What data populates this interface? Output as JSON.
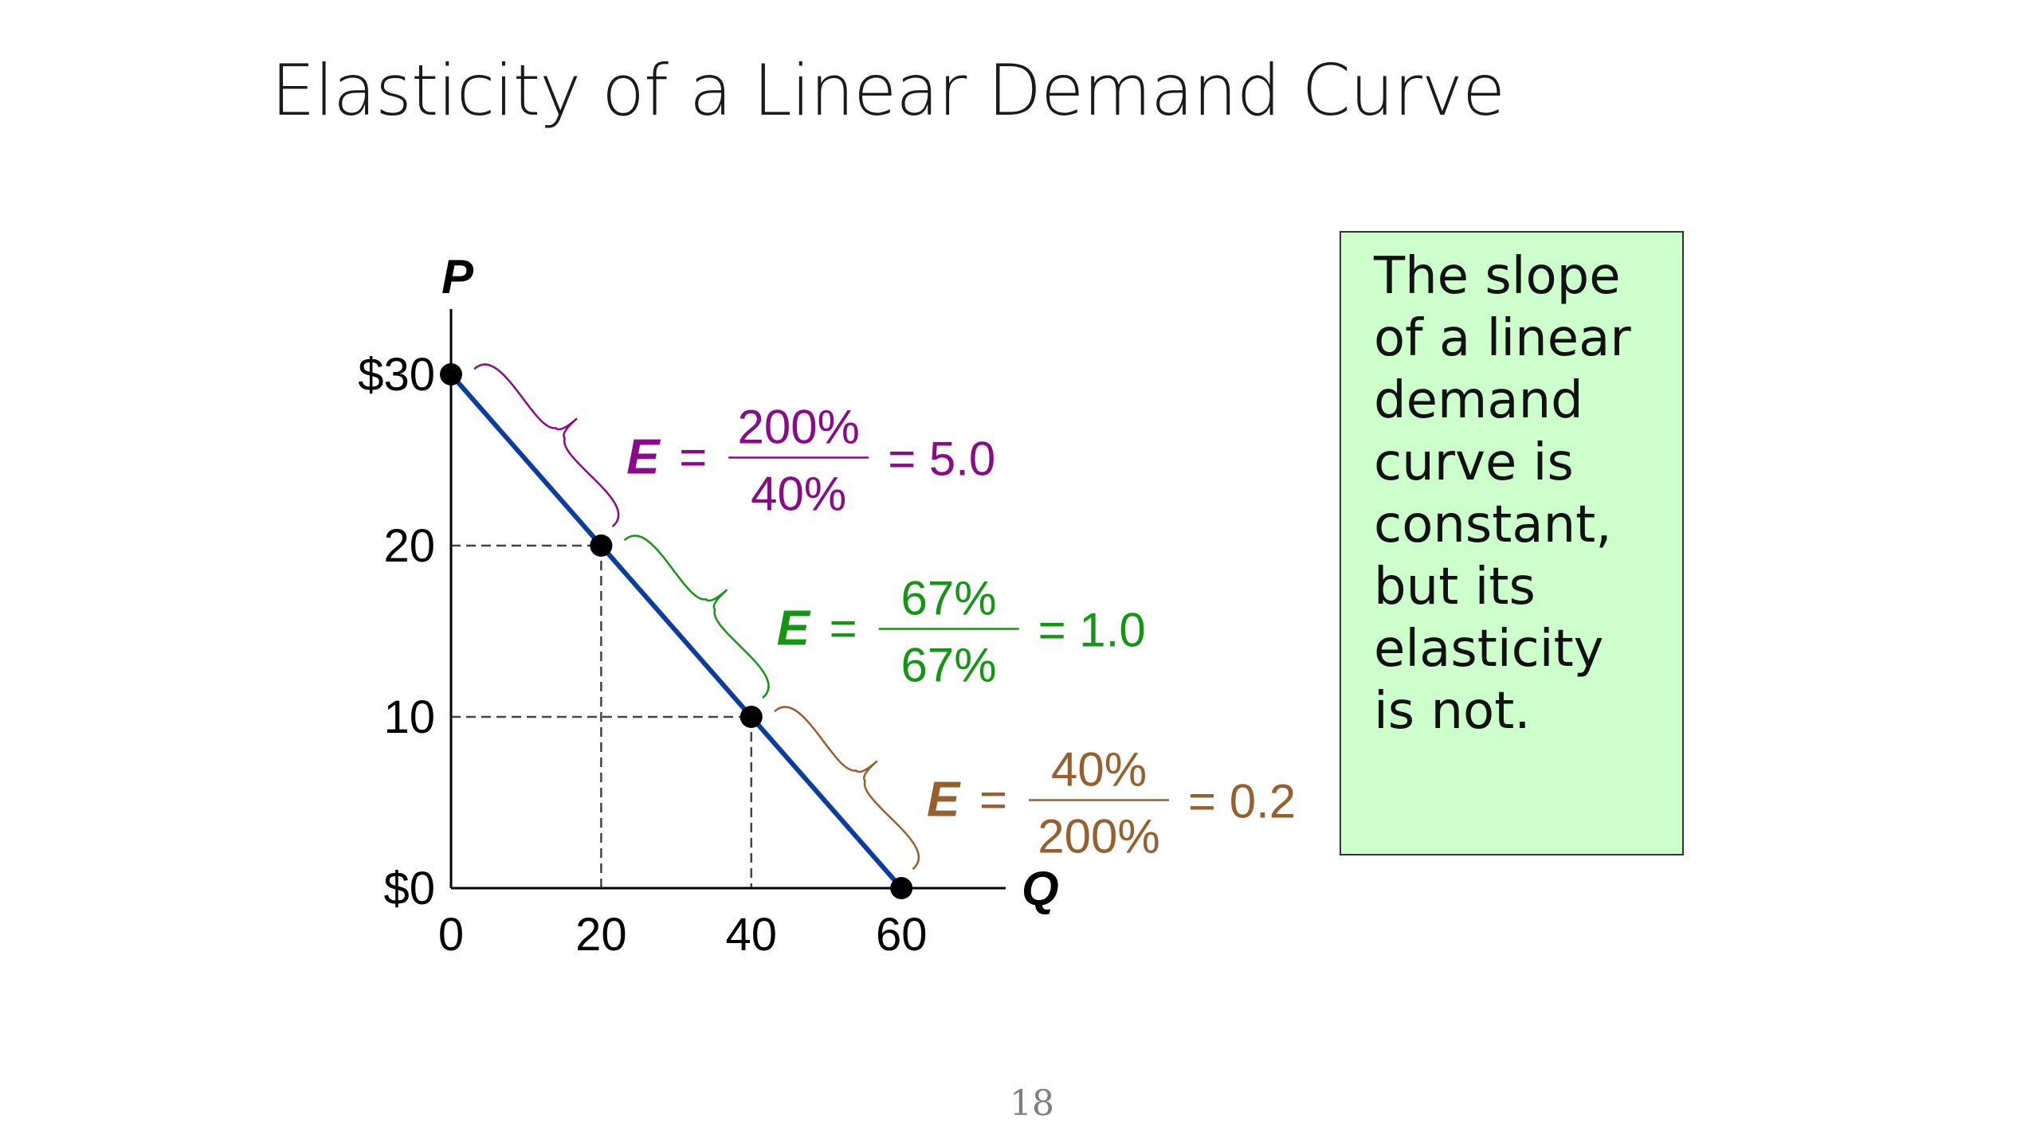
{
  "slide": {
    "title": "Elasticity of a Linear Demand Curve",
    "callout_text": "The slope\nof a linear\ndemand\ncurve is\nconstant,\nbut its\nelasticity\nis not.",
    "page_number": "18"
  },
  "colors": {
    "curve": "#0c3c9e",
    "axis": "#000000",
    "guide": "#444444",
    "segment_1": "#8a0a8a",
    "segment_2": "#149614",
    "segment_3": "#96602c",
    "callout_background": "#ccffcc"
  },
  "chart_data": {
    "type": "line",
    "title": "",
    "xlabel": "Q",
    "ylabel": "P",
    "xlim": [
      0,
      75
    ],
    "ylim": [
      0,
      34
    ],
    "x_ticks": [
      {
        "value": 0,
        "label": "0"
      },
      {
        "value": 20,
        "label": "20"
      },
      {
        "value": 40,
        "label": "40"
      },
      {
        "value": 60,
        "label": "60"
      }
    ],
    "y_ticks": [
      {
        "value": 0,
        "label": "$0"
      },
      {
        "value": 10,
        "label": "10"
      },
      {
        "value": 20,
        "label": "20"
      },
      {
        "value": 30,
        "label": "$30"
      }
    ],
    "series": [
      {
        "points": [
          {
            "x": 0,
            "y": 30
          },
          {
            "x": 20,
            "y": 20
          },
          {
            "x": 40,
            "y": 10
          },
          {
            "x": 60,
            "y": 0
          }
        ]
      }
    ],
    "guides": [
      {
        "x": 20,
        "y": 20
      },
      {
        "x": 40,
        "y": 10
      }
    ],
    "annotations": [
      {
        "from": {
          "x": 0,
          "y": 30
        },
        "to": {
          "x": 20,
          "y": 20
        },
        "symbol": "E",
        "equals": "=",
        "numerator": "200%",
        "denominator": "40%",
        "result": "= 5.0",
        "value": 5.0
      },
      {
        "from": {
          "x": 20,
          "y": 20
        },
        "to": {
          "x": 40,
          "y": 10
        },
        "symbol": "E",
        "equals": "=",
        "numerator": "67%",
        "denominator": "67%",
        "result": "= 1.0",
        "value": 1.0
      },
      {
        "from": {
          "x": 40,
          "y": 10
        },
        "to": {
          "x": 60,
          "y": 0
        },
        "symbol": "E",
        "equals": "=",
        "numerator": "40%",
        "denominator": "200%",
        "result": "= 0.2",
        "value": 0.2
      }
    ]
  }
}
